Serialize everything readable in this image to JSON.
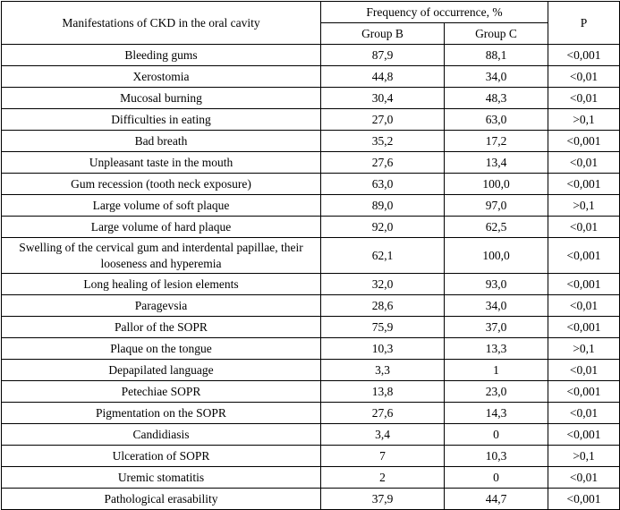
{
  "table": {
    "header": {
      "manifestations": "Manifestations of CKD in the oral cavity",
      "frequency": "Frequency of occurrence, %",
      "group_b": "Group B",
      "group_c": "Group C",
      "p": "P"
    },
    "rows": [
      {
        "manifestation": "Bleeding gums",
        "group_b": "87,9",
        "group_c": "88,1",
        "p": "<0,001"
      },
      {
        "manifestation": "Xerostomia",
        "group_b": "44,8",
        "group_c": "34,0",
        "p": "<0,01"
      },
      {
        "manifestation": "Mucosal burning",
        "group_b": "30,4",
        "group_c": "48,3",
        "p": "<0,01"
      },
      {
        "manifestation": "Difficulties in eating",
        "group_b": "27,0",
        "group_c": "63,0",
        "p": ">0,1"
      },
      {
        "manifestation": "Bad breath",
        "group_b": "35,2",
        "group_c": "17,2",
        "p": "<0,001"
      },
      {
        "manifestation": "Unpleasant taste in the mouth",
        "group_b": "27,6",
        "group_c": "13,4",
        "p": "<0,01"
      },
      {
        "manifestation": "Gum recession (tooth neck exposure)",
        "group_b": "63,0",
        "group_c": "100,0",
        "p": "<0,001"
      },
      {
        "manifestation": "Large volume of soft plaque",
        "group_b": "89,0",
        "group_c": "97,0",
        "p": ">0,1"
      },
      {
        "manifestation": "Large volume of hard plaque",
        "group_b": "92,0",
        "group_c": "62,5",
        "p": "<0,01"
      },
      {
        "manifestation": "Swelling of the cervical gum and interdental papillae, their looseness and hyperemia",
        "group_b": "62,1",
        "group_c": "100,0",
        "p": "<0,001"
      },
      {
        "manifestation": "Long healing of lesion elements",
        "group_b": "32,0",
        "group_c": "93,0",
        "p": "<0,001"
      },
      {
        "manifestation": "Paragevsia",
        "group_b": "28,6",
        "group_c": "34,0",
        "p": "<0,01"
      },
      {
        "manifestation": "Pallor of the SOPR",
        "group_b": "75,9",
        "group_c": "37,0",
        "p": "<0,001"
      },
      {
        "manifestation": "Plaque on the tongue",
        "group_b": "10,3",
        "group_c": "13,3",
        "p": ">0,1"
      },
      {
        "manifestation": "Depapilated language",
        "group_b": "3,3",
        "group_c": "1",
        "p": "<0,01"
      },
      {
        "manifestation": "Petechiae SOPR",
        "group_b": "13,8",
        "group_c": "23,0",
        "p": "<0,001"
      },
      {
        "manifestation": "Pigmentation on the SOPR",
        "group_b": "27,6",
        "group_c": "14,3",
        "p": "<0,01"
      },
      {
        "manifestation": "Candidiasis",
        "group_b": "3,4",
        "group_c": "0",
        "p": "<0,001"
      },
      {
        "manifestation": "Ulceration of SOPR",
        "group_b": "7",
        "group_c": "10,3",
        "p": ">0,1"
      },
      {
        "manifestation": "Uremic stomatitis",
        "group_b": "2",
        "group_c": "0",
        "p": "<0,01"
      },
      {
        "manifestation": "Pathological erasability",
        "group_b": "37,9",
        "group_c": "44,7",
        "p": "<0,001"
      }
    ]
  },
  "chart_data": {
    "type": "table",
    "title": "Manifestations of CKD in the oral cavity — Frequency of occurrence, %",
    "columns": [
      "Manifestations of CKD in the oral cavity",
      "Group B",
      "Group C",
      "P"
    ],
    "rows": [
      [
        "Bleeding gums",
        "87,9",
        "88,1",
        "<0,001"
      ],
      [
        "Xerostomia",
        "44,8",
        "34,0",
        "<0,01"
      ],
      [
        "Mucosal burning",
        "30,4",
        "48,3",
        "<0,01"
      ],
      [
        "Difficulties in eating",
        "27,0",
        "63,0",
        ">0,1"
      ],
      [
        "Bad breath",
        "35,2",
        "17,2",
        "<0,001"
      ],
      [
        "Unpleasant taste in the mouth",
        "27,6",
        "13,4",
        "<0,01"
      ],
      [
        "Gum recession (tooth neck exposure)",
        "63,0",
        "100,0",
        "<0,001"
      ],
      [
        "Large volume of soft plaque",
        "89,0",
        "97,0",
        ">0,1"
      ],
      [
        "Large volume of hard plaque",
        "92,0",
        "62,5",
        "<0,01"
      ],
      [
        "Swelling of the cervical gum and interdental papillae, their looseness and hyperemia",
        "62,1",
        "100,0",
        "<0,001"
      ],
      [
        "Long healing of lesion elements",
        "32,0",
        "93,0",
        "<0,001"
      ],
      [
        "Paragevsia",
        "28,6",
        "34,0",
        "<0,01"
      ],
      [
        "Pallor of the SOPR",
        "75,9",
        "37,0",
        "<0,001"
      ],
      [
        "Plaque on the tongue",
        "10,3",
        "13,3",
        ">0,1"
      ],
      [
        "Depapilated language",
        "3,3",
        "1",
        "<0,01"
      ],
      [
        "Petechiae SOPR",
        "13,8",
        "23,0",
        "<0,001"
      ],
      [
        "Pigmentation on the SOPR",
        "27,6",
        "14,3",
        "<0,01"
      ],
      [
        "Candidiasis",
        "3,4",
        "0",
        "<0,001"
      ],
      [
        "Ulceration of SOPR",
        "7",
        "10,3",
        ">0,1"
      ],
      [
        "Uremic stomatitis",
        "2",
        "0",
        "<0,01"
      ],
      [
        "Pathological erasability",
        "37,9",
        "44,7",
        "<0,001"
      ]
    ]
  }
}
